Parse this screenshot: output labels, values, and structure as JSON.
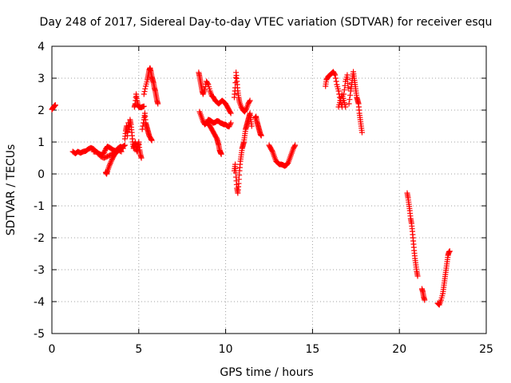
{
  "chart_data": {
    "type": "scatter",
    "title": "Day 248 of 2017, Sidereal Day-to-day VTEC variation (SDTVAR) for receiver esqu",
    "xlabel": "GPS time / hours",
    "ylabel": "SDTVAR / TECUs",
    "xlim": [
      0,
      25
    ],
    "ylim": [
      -5,
      4
    ],
    "xticks": [
      0,
      5,
      10,
      15,
      20,
      25
    ],
    "yticks": [
      -5,
      -4,
      -3,
      -2,
      -1,
      0,
      1,
      2,
      3,
      4
    ],
    "grid": true,
    "marker": "+",
    "series": [
      {
        "name": "SDTVAR",
        "color": "#ff0000",
        "segments": [
          [
            [
              0.0,
              2.02
            ],
            [
              0.05,
              2.06
            ],
            [
              0.1,
              2.1
            ],
            [
              0.15,
              2.13
            ],
            [
              0.2,
              2.16
            ]
          ],
          [
            [
              1.2,
              0.7
            ],
            [
              1.35,
              0.64
            ],
            [
              1.5,
              0.7
            ],
            [
              1.65,
              0.66
            ],
            [
              1.8,
              0.7
            ],
            [
              1.95,
              0.72
            ],
            [
              2.1,
              0.78
            ],
            [
              2.25,
              0.82
            ],
            [
              2.4,
              0.78
            ],
            [
              2.55,
              0.7
            ],
            [
              2.7,
              0.64
            ],
            [
              2.85,
              0.6
            ],
            [
              3.0,
              0.66
            ],
            [
              3.1,
              0.78
            ],
            [
              3.2,
              0.86
            ],
            [
              3.35,
              0.82
            ],
            [
              3.5,
              0.76
            ],
            [
              3.65,
              0.72
            ],
            [
              3.8,
              0.8
            ],
            [
              3.95,
              0.86
            ],
            [
              4.1,
              0.8
            ]
          ],
          [
            [
              3.1,
              0.05
            ],
            [
              3.15,
              0.0
            ],
            [
              3.2,
              0.1
            ],
            [
              3.3,
              0.25
            ],
            [
              3.4,
              0.38
            ],
            [
              3.5,
              0.5
            ],
            [
              3.6,
              0.6
            ],
            [
              3.7,
              0.68
            ],
            [
              3.8,
              0.72
            ],
            [
              3.9,
              0.78
            ],
            [
              4.0,
              0.82
            ],
            [
              4.1,
              0.86
            ],
            [
              4.2,
              0.9
            ]
          ],
          [
            [
              2.4,
              0.7
            ],
            [
              2.6,
              0.68
            ],
            [
              2.8,
              0.55
            ],
            [
              3.0,
              0.5
            ],
            [
              3.2,
              0.55
            ],
            [
              3.4,
              0.6
            ],
            [
              3.6,
              0.7
            ],
            [
              3.8,
              0.75
            ],
            [
              4.0,
              0.7
            ]
          ],
          [
            [
              4.2,
              1.1
            ],
            [
              4.25,
              1.35
            ],
            [
              4.3,
              1.5
            ],
            [
              4.35,
              1.2
            ],
            [
              4.4,
              1.6
            ],
            [
              4.45,
              1.4
            ],
            [
              4.5,
              1.7
            ],
            [
              4.55,
              1.55
            ],
            [
              4.6,
              1.3
            ],
            [
              4.65,
              1.0
            ],
            [
              4.7,
              0.8
            ],
            [
              4.75,
              0.9
            ],
            [
              4.8,
              1.0
            ],
            [
              4.85,
              0.8
            ],
            [
              4.9,
              0.7
            ],
            [
              4.95,
              0.85
            ],
            [
              5.0,
              1.0
            ],
            [
              5.05,
              0.75
            ],
            [
              5.1,
              0.6
            ],
            [
              5.15,
              0.5
            ]
          ],
          [
            [
              4.75,
              2.1
            ],
            [
              4.8,
              2.2
            ],
            [
              4.85,
              2.5
            ],
            [
              4.9,
              2.3
            ],
            [
              4.95,
              2.15
            ],
            [
              5.0,
              2.1
            ],
            [
              5.1,
              2.08
            ],
            [
              5.2,
              2.1
            ],
            [
              5.3,
              2.12
            ]
          ],
          [
            [
              5.2,
              1.4
            ],
            [
              5.3,
              1.7
            ],
            [
              5.35,
              1.9
            ],
            [
              5.4,
              1.6
            ],
            [
              5.45,
              1.5
            ],
            [
              5.5,
              1.4
            ],
            [
              5.55,
              1.3
            ],
            [
              5.6,
              1.2
            ],
            [
              5.7,
              1.1
            ],
            [
              5.75,
              1.05
            ]
          ],
          [
            [
              5.3,
              2.5
            ],
            [
              5.4,
              2.75
            ],
            [
              5.5,
              2.95
            ],
            [
              5.55,
              3.1
            ],
            [
              5.6,
              3.25
            ],
            [
              5.65,
              3.32
            ],
            [
              5.7,
              3.2
            ],
            [
              5.75,
              3.05
            ],
            [
              5.8,
              2.95
            ],
            [
              5.85,
              2.85
            ],
            [
              5.9,
              2.7
            ],
            [
              5.95,
              2.6
            ],
            [
              6.0,
              2.45
            ],
            [
              6.05,
              2.3
            ],
            [
              6.1,
              2.2
            ]
          ],
          [
            [
              8.45,
              3.18
            ],
            [
              8.5,
              3.05
            ],
            [
              8.55,
              2.9
            ],
            [
              8.6,
              2.75
            ],
            [
              8.65,
              2.6
            ],
            [
              8.7,
              2.5
            ],
            [
              8.8,
              2.65
            ],
            [
              8.9,
              2.9
            ],
            [
              9.0,
              2.8
            ],
            [
              9.1,
              2.6
            ],
            [
              9.2,
              2.45
            ],
            [
              9.3,
              2.4
            ],
            [
              9.4,
              2.3
            ],
            [
              9.5,
              2.25
            ],
            [
              9.6,
              2.2
            ],
            [
              9.7,
              2.25
            ],
            [
              9.8,
              2.3
            ],
            [
              9.9,
              2.25
            ],
            [
              10.0,
              2.2
            ],
            [
              10.1,
              2.1
            ],
            [
              10.2,
              2.0
            ],
            [
              10.3,
              1.9
            ]
          ],
          [
            [
              8.5,
              1.95
            ],
            [
              8.6,
              1.8
            ],
            [
              8.7,
              1.65
            ],
            [
              8.8,
              1.55
            ],
            [
              8.9,
              1.6
            ],
            [
              9.0,
              1.7
            ],
            [
              9.1,
              1.68
            ],
            [
              9.2,
              1.64
            ],
            [
              9.3,
              1.6
            ],
            [
              9.4,
              1.62
            ],
            [
              9.5,
              1.66
            ],
            [
              9.6,
              1.65
            ],
            [
              9.7,
              1.6
            ],
            [
              9.8,
              1.58
            ],
            [
              9.9,
              1.55
            ],
            [
              10.0,
              1.55
            ],
            [
              10.1,
              1.5
            ],
            [
              10.2,
              1.48
            ],
            [
              10.3,
              1.6
            ]
          ],
          [
            [
              9.0,
              1.55
            ],
            [
              9.1,
              1.5
            ],
            [
              9.2,
              1.4
            ],
            [
              9.3,
              1.3
            ],
            [
              9.4,
              1.2
            ],
            [
              9.5,
              1.1
            ],
            [
              9.55,
              1.0
            ],
            [
              9.6,
              0.9
            ],
            [
              9.65,
              0.75
            ],
            [
              9.7,
              0.68
            ],
            [
              9.75,
              0.62
            ]
          ],
          [
            [
              10.5,
              2.4
            ],
            [
              10.55,
              2.7
            ],
            [
              10.6,
              3.18
            ],
            [
              10.65,
              2.9
            ],
            [
              10.7,
              2.6
            ],
            [
              10.75,
              2.4
            ],
            [
              10.8,
              2.25
            ],
            [
              10.9,
              2.1
            ],
            [
              11.0,
              2.0
            ],
            [
              11.1,
              1.95
            ],
            [
              11.2,
              2.05
            ],
            [
              11.3,
              2.2
            ],
            [
              11.4,
              2.3
            ]
          ],
          [
            [
              10.5,
              0.1
            ],
            [
              10.55,
              0.3
            ],
            [
              10.6,
              -0.1
            ],
            [
              10.65,
              -0.45
            ],
            [
              10.7,
              -0.6
            ],
            [
              10.75,
              -0.3
            ],
            [
              10.8,
              0.1
            ],
            [
              10.85,
              0.4
            ],
            [
              10.9,
              0.6
            ],
            [
              10.95,
              0.8
            ],
            [
              11.0,
              0.9
            ],
            [
              11.05,
              1.0
            ],
            [
              11.1,
              1.2
            ],
            [
              11.15,
              1.4
            ],
            [
              11.2,
              1.5
            ],
            [
              11.25,
              1.6
            ],
            [
              11.3,
              1.7
            ],
            [
              11.35,
              1.8
            ],
            [
              11.4,
              1.9
            ],
            [
              11.45,
              1.7
            ],
            [
              11.5,
              1.5
            ]
          ],
          [
            [
              11.7,
              1.75
            ],
            [
              11.75,
              1.8
            ],
            [
              11.8,
              1.65
            ],
            [
              11.85,
              1.55
            ],
            [
              11.9,
              1.45
            ],
            [
              11.95,
              1.35
            ],
            [
              12.0,
              1.25
            ],
            [
              12.05,
              1.2
            ]
          ],
          [
            [
              12.5,
              0.9
            ],
            [
              12.6,
              0.8
            ],
            [
              12.7,
              0.7
            ],
            [
              12.8,
              0.55
            ],
            [
              12.9,
              0.4
            ],
            [
              13.0,
              0.35
            ],
            [
              13.1,
              0.3
            ],
            [
              13.2,
              0.3
            ],
            [
              13.3,
              0.28
            ],
            [
              13.4,
              0.25
            ],
            [
              13.5,
              0.28
            ],
            [
              13.6,
              0.35
            ],
            [
              13.7,
              0.5
            ],
            [
              13.8,
              0.65
            ],
            [
              13.9,
              0.8
            ],
            [
              14.0,
              0.9
            ]
          ],
          [
            [
              15.75,
              2.75
            ],
            [
              15.8,
              2.95
            ],
            [
              15.9,
              3.05
            ],
            [
              16.0,
              3.1
            ],
            [
              16.1,
              3.15
            ],
            [
              16.2,
              3.2
            ],
            [
              16.3,
              3.1
            ],
            [
              16.4,
              2.8
            ],
            [
              16.5,
              2.6
            ],
            [
              16.6,
              2.3
            ],
            [
              16.7,
              2.1
            ],
            [
              16.8,
              2.5
            ],
            [
              16.9,
              2.9
            ],
            [
              17.0,
              3.1
            ],
            [
              17.05,
              2.7
            ]
          ],
          [
            [
              16.5,
              2.1
            ],
            [
              16.6,
              2.3
            ],
            [
              16.7,
              2.5
            ],
            [
              16.8,
              2.3
            ],
            [
              16.9,
              2.1
            ]
          ],
          [
            [
              17.1,
              2.2
            ],
            [
              17.2,
              2.6
            ],
            [
              17.25,
              2.8
            ],
            [
              17.3,
              3.0
            ],
            [
              17.35,
              3.2
            ],
            [
              17.4,
              3.0
            ],
            [
              17.45,
              2.8
            ],
            [
              17.5,
              2.6
            ],
            [
              17.55,
              2.4
            ],
            [
              17.6,
              2.3
            ],
            [
              17.65,
              2.2
            ],
            [
              17.7,
              1.9
            ],
            [
              17.75,
              1.7
            ],
            [
              17.8,
              1.5
            ],
            [
              17.85,
              1.3
            ]
          ],
          [
            [
              20.45,
              -0.6
            ],
            [
              20.5,
              -0.75
            ],
            [
              20.55,
              -0.95
            ],
            [
              20.6,
              -1.15
            ],
            [
              20.65,
              -1.4
            ],
            [
              20.7,
              -1.55
            ],
            [
              20.75,
              -1.8
            ],
            [
              20.8,
              -2.1
            ],
            [
              20.85,
              -2.4
            ],
            [
              20.9,
              -2.65
            ],
            [
              20.95,
              -2.85
            ],
            [
              21.0,
              -3.05
            ],
            [
              21.05,
              -3.2
            ]
          ],
          [
            [
              21.3,
              -3.6
            ],
            [
              21.35,
              -3.7
            ],
            [
              21.4,
              -3.85
            ],
            [
              21.45,
              -3.95
            ]
          ],
          [
            [
              22.2,
              -4.05
            ],
            [
              22.3,
              -4.1
            ],
            [
              22.4,
              -3.95
            ],
            [
              22.5,
              -3.75
            ],
            [
              22.55,
              -3.55
            ],
            [
              22.6,
              -3.35
            ],
            [
              22.65,
              -3.15
            ],
            [
              22.7,
              -2.95
            ],
            [
              22.75,
              -2.75
            ],
            [
              22.8,
              -2.55
            ],
            [
              22.85,
              -2.45
            ],
            [
              22.9,
              -2.42
            ]
          ]
        ]
      }
    ]
  }
}
